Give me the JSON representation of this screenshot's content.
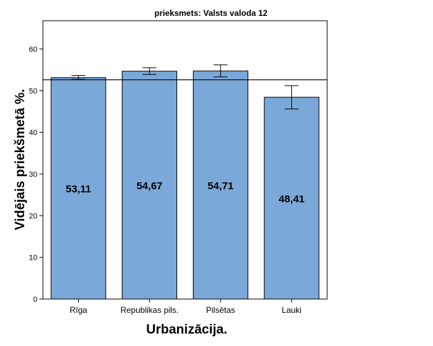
{
  "chart_data": {
    "type": "bar",
    "title": "prieksmets: Valsts valoda 12",
    "xlabel": "Urbanizācija.",
    "ylabel": "Vidējais priekšmetā %.",
    "categories": [
      "Rīga",
      "Republikas pils.",
      "Pilsētas",
      "Lauki"
    ],
    "values": [
      53.11,
      54.67,
      54.71,
      48.41
    ],
    "value_labels": [
      "53,11",
      "54,67",
      "54,71",
      "48,41"
    ],
    "error_low": [
      52.7,
      53.9,
      53.3,
      45.6
    ],
    "error_high": [
      53.6,
      55.5,
      56.2,
      51.2
    ],
    "reference_line": 52.6,
    "ylim": [
      0,
      70
    ],
    "yticks": [
      0,
      10,
      20,
      30,
      40,
      50,
      60
    ],
    "ytick_labels": [
      "0",
      "10",
      "20",
      "30",
      "40",
      "50",
      "60"
    ],
    "grid": false,
    "legend": "none",
    "colors": {
      "bar_fill": "#7aa8d8",
      "bar_stroke": "#000000",
      "line": "#000000"
    }
  }
}
